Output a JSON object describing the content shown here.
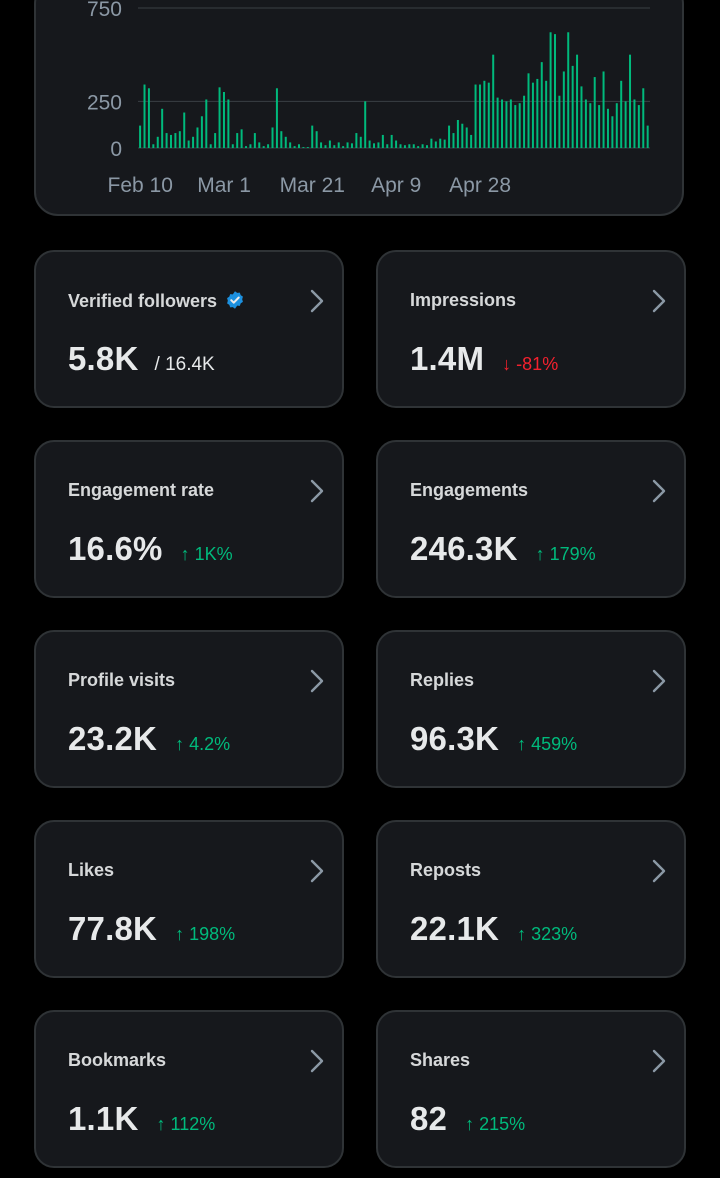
{
  "colors": {
    "background": "#000000",
    "card": "#16181c",
    "border": "#2f3336",
    "text": "#e7e9ea",
    "muted": "#8b98a5",
    "bar": "#00ba7c",
    "up": "#00ba7c",
    "down": "#f4212e",
    "verified": "#1d9bf0"
  },
  "chart_data": {
    "type": "bar",
    "y_ticks": [
      "750",
      "250",
      "0"
    ],
    "y_tick_values": [
      750,
      250,
      0
    ],
    "x_tick_labels": [
      "Feb 10",
      "Mar 1",
      "Mar 21",
      "Apr 9",
      "Apr 28"
    ],
    "x_tick_days": [
      0,
      19,
      39,
      58,
      77
    ],
    "ylim": [
      0,
      750
    ],
    "grid": true,
    "values": [
      120,
      340,
      320,
      20,
      60,
      210,
      80,
      70,
      80,
      90,
      190,
      40,
      60,
      110,
      170,
      260,
      20,
      80,
      325,
      300,
      260,
      20,
      80,
      100,
      10,
      20,
      80,
      30,
      10,
      20,
      110,
      320,
      90,
      60,
      30,
      10,
      20,
      5,
      5,
      120,
      90,
      30,
      15,
      40,
      15,
      30,
      10,
      30,
      25,
      80,
      60,
      250,
      40,
      25,
      30,
      70,
      20,
      70,
      40,
      20,
      15,
      20,
      20,
      10,
      20,
      15,
      50,
      35,
      50,
      45,
      120,
      80,
      150,
      130,
      110,
      70,
      340,
      340,
      360,
      350,
      500,
      270,
      260,
      250,
      260,
      230,
      240,
      280,
      400,
      350,
      370,
      460,
      360,
      620,
      610,
      280,
      410,
      620,
      440,
      500,
      330,
      260,
      240,
      380,
      230,
      410,
      210,
      170,
      240,
      360,
      250,
      500,
      260,
      230,
      320,
      120
    ]
  },
  "cards": [
    {
      "label": "Verified followers",
      "value": "5.8K",
      "sub": "/ 16.4K",
      "change": "",
      "direction": "",
      "verified": true
    },
    {
      "label": "Impressions",
      "value": "1.4M",
      "sub": "",
      "change": "↓ -81%",
      "direction": "down"
    },
    {
      "label": "Engagement rate",
      "value": "16.6%",
      "sub": "",
      "change": "↑ 1K%",
      "direction": "up"
    },
    {
      "label": "Engagements",
      "value": "246.3K",
      "sub": "",
      "change": "↑ 179%",
      "direction": "up"
    },
    {
      "label": "Profile visits",
      "value": "23.2K",
      "sub": "",
      "change": "↑ 4.2%",
      "direction": "up"
    },
    {
      "label": "Replies",
      "value": "96.3K",
      "sub": "",
      "change": "↑ 459%",
      "direction": "up"
    },
    {
      "label": "Likes",
      "value": "77.8K",
      "sub": "",
      "change": "↑ 198%",
      "direction": "up"
    },
    {
      "label": "Reposts",
      "value": "22.1K",
      "sub": "",
      "change": "↑ 323%",
      "direction": "up"
    },
    {
      "label": "Bookmarks",
      "value": "1.1K",
      "sub": "",
      "change": "↑ 112%",
      "direction": "up"
    },
    {
      "label": "Shares",
      "value": "82",
      "sub": "",
      "change": "↑ 215%",
      "direction": "up"
    }
  ]
}
